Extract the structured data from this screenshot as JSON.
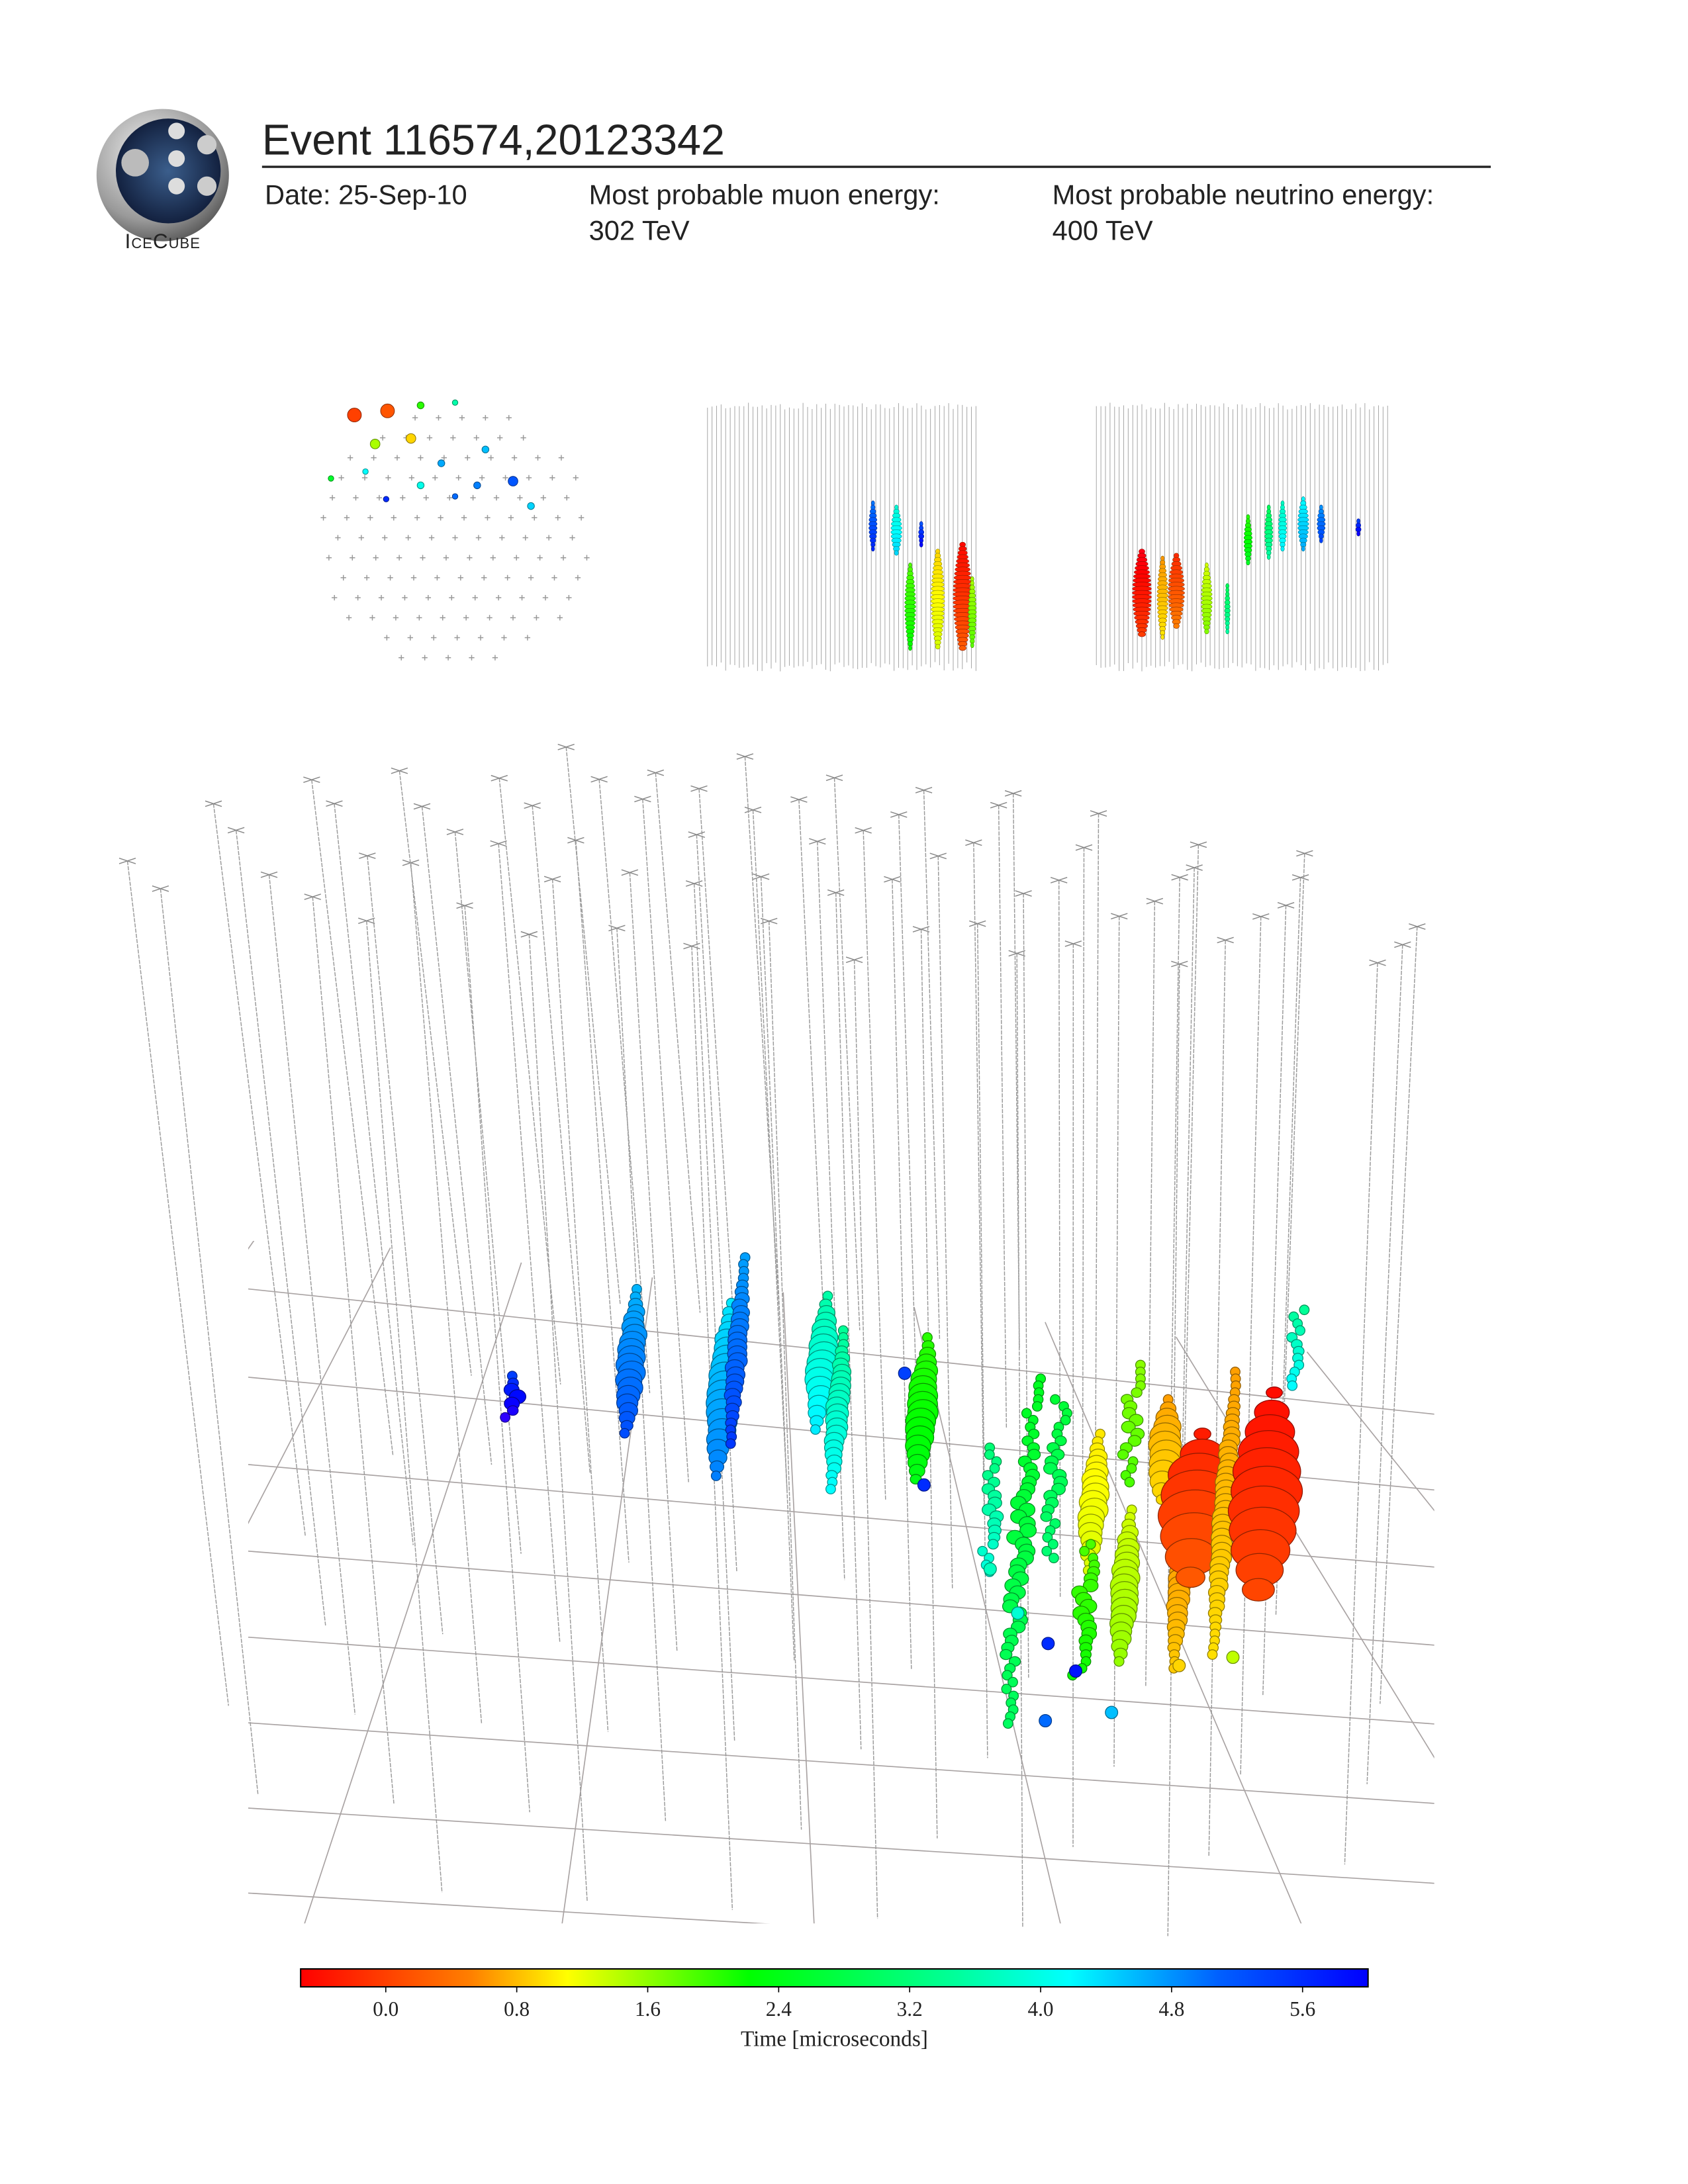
{
  "header": {
    "logo_text": "IceCube",
    "title": "Event 116574,20123342",
    "date": "Date: 25-Sep-10",
    "muon_label": "Most probable muon energy:",
    "muon_value": "302 TeV",
    "neutrino_label": "Most probable neutrino energy:",
    "neutrino_value": "400 TeV"
  },
  "colorbar": {
    "label": "Time [microseconds]",
    "lim": [
      -0.52,
      6.0
    ],
    "ticks": [
      {
        "value": 0,
        "label": "0.0"
      },
      0.8,
      1.6,
      2.4,
      3.2,
      {
        "value": 4,
        "label": "4.0"
      },
      4.8,
      5.6
    ]
  }
}
